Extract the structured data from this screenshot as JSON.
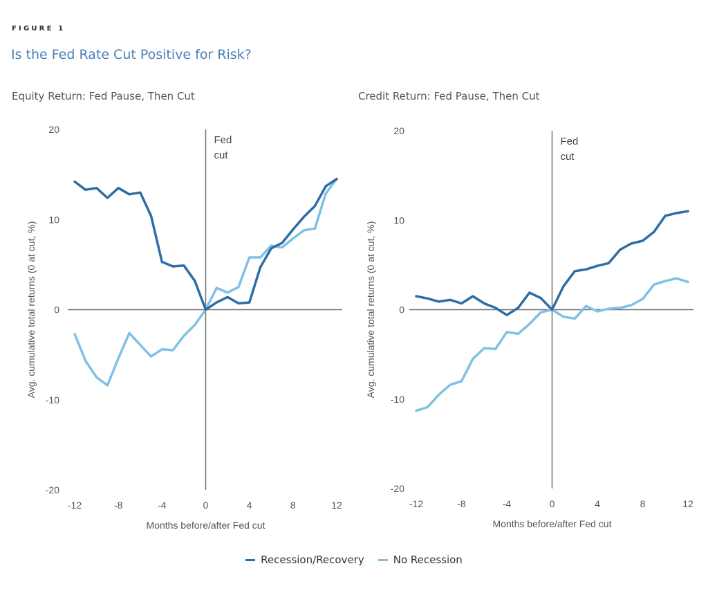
{
  "figure_label": "FIGURE 1",
  "figure_title": "Is the Fed Rate Cut Positive for Risk?",
  "colors": {
    "recession": "#2e6da4",
    "no_recession": "#7fc1e5",
    "axis": "#707070",
    "title": "#4a7fb5"
  },
  "legend": [
    {
      "label": "Recession/Recovery",
      "color": "#2e6da4"
    },
    {
      "label": "No Recession",
      "color": "#7fc1e5"
    }
  ],
  "chart_data": [
    {
      "type": "line",
      "title": "Equity Return: Fed Pause, Then Cut",
      "xlabel": "Months before/after Fed cut",
      "ylabel": "Avg. cumulative total returns (0 at cut, %)",
      "annotation": [
        "Fed",
        "cut"
      ],
      "xlim": [
        -12,
        12
      ],
      "ylim": [
        -20,
        20
      ],
      "xticks": [
        -12,
        -8,
        -4,
        0,
        4,
        8,
        12
      ],
      "yticks": [
        20,
        10,
        0,
        -10,
        -20
      ],
      "grid": false,
      "x": [
        -12,
        -11,
        -10,
        -9,
        -8,
        -7,
        -6,
        -5,
        -4,
        -3,
        -2,
        -1,
        0,
        1,
        2,
        3,
        4,
        5,
        6,
        7,
        8,
        9,
        10,
        11,
        12
      ],
      "series": [
        {
          "name": "Recession/Recovery",
          "values": [
            14.2,
            13.3,
            13.5,
            12.4,
            13.5,
            12.8,
            13.0,
            10.4,
            5.3,
            4.8,
            4.9,
            3.2,
            0,
            0.8,
            1.4,
            0.7,
            0.8,
            4.7,
            6.8,
            7.4,
            8.9,
            10.3,
            11.5,
            13.7,
            14.5
          ]
        },
        {
          "name": "No Recession",
          "values": [
            -2.7,
            -5.7,
            -7.5,
            -8.4,
            -5.4,
            -2.6,
            -3.9,
            -5.2,
            -4.4,
            -4.5,
            -2.9,
            -1.7,
            0,
            2.4,
            1.9,
            2.5,
            5.8,
            5.8,
            7.1,
            6.9,
            7.9,
            8.8,
            9.0,
            12.9,
            14.5
          ]
        }
      ]
    },
    {
      "type": "line",
      "title": "Credit Return: Fed Pause, Then Cut",
      "xlabel": "Months before/after Fed cut",
      "ylabel": "Avg. cumulative total returns (0 at cut, %)",
      "annotation": [
        "Fed",
        "cut"
      ],
      "xlim": [
        -12,
        12
      ],
      "ylim": [
        -20,
        20
      ],
      "xticks": [
        -12,
        -8,
        -4,
        0,
        4,
        8,
        12
      ],
      "yticks": [
        20,
        10,
        0,
        -10,
        -20
      ],
      "grid": false,
      "x": [
        -12,
        -11,
        -10,
        -9,
        -8,
        -7,
        -6,
        -5,
        -4,
        -3,
        -2,
        -1,
        0,
        1,
        2,
        3,
        4,
        5,
        6,
        7,
        8,
        9,
        10,
        11,
        12
      ],
      "series": [
        {
          "name": "Recession/Recovery",
          "values": [
            1.5,
            1.25,
            0.9,
            1.1,
            0.7,
            1.5,
            0.7,
            0.2,
            -0.6,
            0.2,
            1.9,
            1.3,
            0,
            2.6,
            4.3,
            4.5,
            4.9,
            5.2,
            6.7,
            7.4,
            7.7,
            8.7,
            10.5,
            10.8,
            11.0
          ]
        },
        {
          "name": "No Recession",
          "values": [
            -11.3,
            -10.9,
            -9.5,
            -8.4,
            -8.0,
            -5.5,
            -4.3,
            -4.4,
            -2.5,
            -2.7,
            -1.6,
            -0.3,
            0,
            -0.8,
            -1.0,
            0.4,
            -0.2,
            0.1,
            0.2,
            0.5,
            1.2,
            2.8,
            3.2,
            3.5,
            3.1
          ]
        }
      ]
    }
  ]
}
